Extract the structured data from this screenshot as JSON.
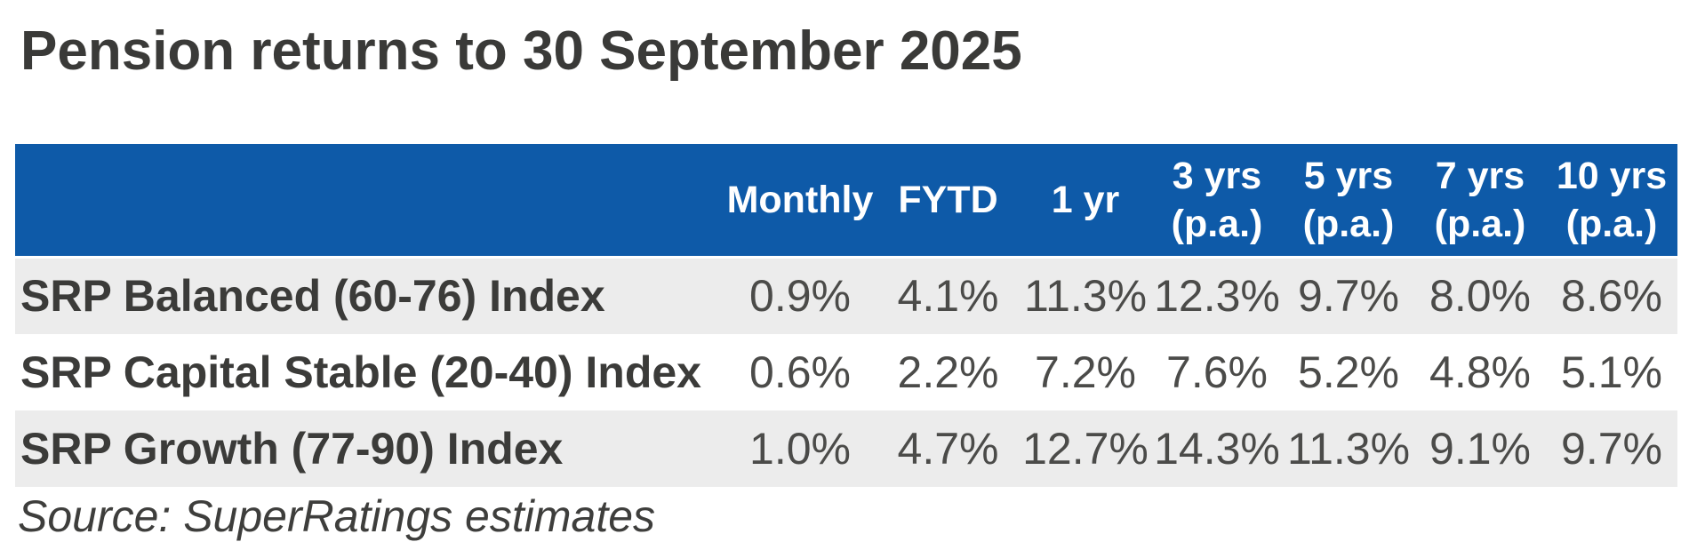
{
  "chart_data": {
    "type": "table",
    "title": "Pension returns to 30 September 2025",
    "columns": [
      {
        "line1": "Monthly",
        "line2": ""
      },
      {
        "line1": "FYTD",
        "line2": ""
      },
      {
        "line1": "1 yr",
        "line2": ""
      },
      {
        "line1": "3 yrs",
        "line2": "(p.a.)"
      },
      {
        "line1": "5 yrs",
        "line2": "(p.a.)"
      },
      {
        "line1": "7 yrs",
        "line2": "(p.a.)"
      },
      {
        "line1": "10 yrs",
        "line2": "(p.a.)"
      }
    ],
    "rows": [
      {
        "name": "SRP Balanced (60-76) Index",
        "values": [
          "0.9%",
          "4.1%",
          "11.3%",
          "12.3%",
          "9.7%",
          "8.0%",
          "8.6%"
        ]
      },
      {
        "name": "SRP Capital Stable (20-40) Index",
        "values": [
          "0.6%",
          "2.2%",
          "7.2%",
          "7.6%",
          "5.2%",
          "4.8%",
          "5.1%"
        ]
      },
      {
        "name": "SRP Growth (77-90) Index",
        "values": [
          "1.0%",
          "4.7%",
          "12.7%",
          "14.3%",
          "11.3%",
          "9.1%",
          "9.7%"
        ]
      }
    ],
    "source": "Source: SuperRatings estimates",
    "layout": {
      "legend": "none",
      "grid": "off",
      "stripe_style": "zebra"
    }
  },
  "colors": {
    "header_bg": "#0e5aa8",
    "header_text": "#ffffff",
    "stripe_bg": "#ececec",
    "title_text": "#3a3a38",
    "value_text": "#4b4b49"
  }
}
